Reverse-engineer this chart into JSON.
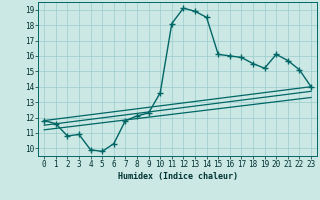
{
  "xlabel": "Humidex (Indice chaleur)",
  "ylabel": "",
  "bg_color": "#cce8e4",
  "line_color": "#006666",
  "grid_color": "#99cccc",
  "xlim": [
    -0.5,
    23.5
  ],
  "ylim": [
    9.5,
    19.5
  ],
  "xticks": [
    0,
    1,
    2,
    3,
    4,
    5,
    6,
    7,
    8,
    9,
    10,
    11,
    12,
    13,
    14,
    15,
    16,
    17,
    18,
    19,
    20,
    21,
    22,
    23
  ],
  "yticks": [
    10,
    11,
    12,
    13,
    14,
    15,
    16,
    17,
    18,
    19
  ],
  "line1_x": [
    0,
    1,
    2,
    3,
    4,
    5,
    6,
    7,
    8,
    9,
    10,
    11,
    12,
    13,
    14,
    15,
    16,
    17,
    18,
    19,
    20,
    21,
    22,
    23
  ],
  "line1_y": [
    11.8,
    11.6,
    10.8,
    10.9,
    9.9,
    9.8,
    10.3,
    11.8,
    12.1,
    12.3,
    13.6,
    18.1,
    19.1,
    18.9,
    18.5,
    16.1,
    16.0,
    15.9,
    15.5,
    15.2,
    16.1,
    15.7,
    15.1,
    14.0
  ],
  "line2_x": [
    0,
    23
  ],
  "line2_y": [
    11.8,
    14.0
  ],
  "line3_x": [
    0,
    23
  ],
  "line3_y": [
    11.2,
    13.3
  ],
  "line4_x": [
    0,
    23
  ],
  "line4_y": [
    11.5,
    13.7
  ]
}
